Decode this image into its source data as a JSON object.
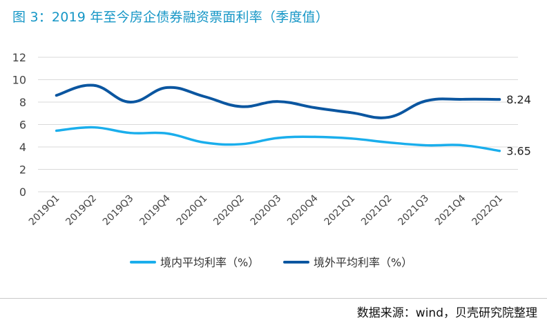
{
  "title": "图 3：2019 年至今房企债券融资票面利率（季度值）",
  "source": "数据来源：wind，贝壳研究院整理",
  "colors": {
    "title": "#1596c6",
    "series_domestic": "#1aaeec",
    "series_overseas": "#0b56a0",
    "grid": "#d9d9d9",
    "axis_text": "#444444"
  },
  "chart_data": {
    "type": "line",
    "title": "图 3：2019 年至今房企债券融资票面利率（季度值）",
    "xlabel": "",
    "ylabel": "",
    "categories": [
      "2019Q1",
      "2019Q2",
      "2019Q3",
      "2019Q4",
      "2020Q1",
      "2020Q2",
      "2020Q3",
      "2020Q4",
      "2021Q1",
      "2021Q2",
      "2021Q3",
      "2021Q4",
      "2022Q1"
    ],
    "ylim": [
      0,
      12
    ],
    "yticks": [
      "0",
      "2",
      "4",
      "6",
      "8",
      "10",
      "12"
    ],
    "grid": true,
    "legend_position": "bottom",
    "series": [
      {
        "name": "境内平均利率（%）",
        "color_key": "series_domestic",
        "values": [
          5.45,
          5.75,
          5.25,
          5.2,
          4.4,
          4.25,
          4.8,
          4.9,
          4.75,
          4.4,
          4.15,
          4.15,
          3.65
        ],
        "end_label": "3.65"
      },
      {
        "name": "境外平均利率（%）",
        "color_key": "series_overseas",
        "values": [
          8.6,
          9.5,
          8.0,
          9.3,
          8.5,
          7.6,
          8.05,
          7.5,
          7.05,
          6.65,
          8.1,
          8.25,
          8.24
        ],
        "end_label": "8.24"
      }
    ]
  }
}
